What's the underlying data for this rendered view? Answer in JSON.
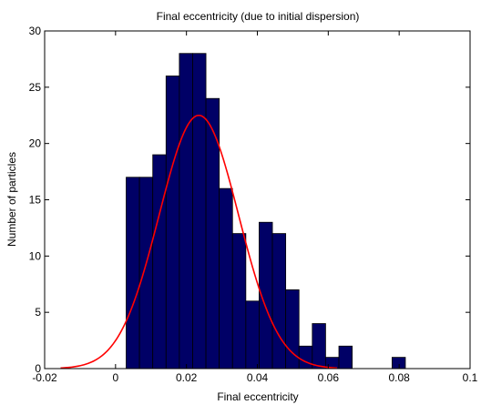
{
  "chart_data": {
    "type": "bar",
    "title": "Final eccentricity (due to initial dispersion)",
    "xlabel": "Final eccentricity",
    "ylabel": "Number of particles",
    "xlim": [
      -0.02,
      0.1
    ],
    "ylim": [
      0,
      30
    ],
    "xticks": [
      -0.02,
      0,
      0.02,
      0.04,
      0.06,
      0.08,
      0.1
    ],
    "xtick_labels": [
      "-0.02",
      "0",
      "0.02",
      "0.04",
      "0.06",
      "0.08",
      "0.1"
    ],
    "yticks": [
      0,
      5,
      10,
      15,
      20,
      25,
      30
    ],
    "ytick_labels": [
      "0",
      "5",
      "10",
      "15",
      "20",
      "25",
      "30"
    ],
    "grid": false,
    "bin_width": 0.00375,
    "bins": [
      {
        "x0": 0.003,
        "x1": 0.00675,
        "count": 17
      },
      {
        "x0": 0.00675,
        "x1": 0.0105,
        "count": 17
      },
      {
        "x0": 0.0105,
        "x1": 0.01425,
        "count": 19
      },
      {
        "x0": 0.01425,
        "x1": 0.018,
        "count": 26
      },
      {
        "x0": 0.018,
        "x1": 0.02175,
        "count": 28
      },
      {
        "x0": 0.02175,
        "x1": 0.0255,
        "count": 28
      },
      {
        "x0": 0.0255,
        "x1": 0.02925,
        "count": 24
      },
      {
        "x0": 0.02925,
        "x1": 0.033,
        "count": 16
      },
      {
        "x0": 0.033,
        "x1": 0.03675,
        "count": 12
      },
      {
        "x0": 0.03675,
        "x1": 0.0405,
        "count": 6
      },
      {
        "x0": 0.0405,
        "x1": 0.04425,
        "count": 13
      },
      {
        "x0": 0.04425,
        "x1": 0.048,
        "count": 12
      },
      {
        "x0": 0.048,
        "x1": 0.05175,
        "count": 7
      },
      {
        "x0": 0.05175,
        "x1": 0.0555,
        "count": 2
      },
      {
        "x0": 0.0555,
        "x1": 0.05925,
        "count": 4
      },
      {
        "x0": 0.05925,
        "x1": 0.063,
        "count": 1
      },
      {
        "x0": 0.063,
        "x1": 0.06675,
        "count": 2
      },
      {
        "x0": 0.06675,
        "x1": 0.0705,
        "count": 0
      },
      {
        "x0": 0.0705,
        "x1": 0.07425,
        "count": 0
      },
      {
        "x0": 0.07425,
        "x1": 0.078,
        "count": 0
      },
      {
        "x0": 0.078,
        "x1": 0.08175,
        "count": 1
      }
    ],
    "fit_curve": {
      "type": "gaussian",
      "peak": 22.5,
      "mean": 0.0235,
      "sigma": 0.0112,
      "x_range": [
        -0.0155,
        0.0625
      ]
    },
    "colors": {
      "bar_fill": "#000066",
      "bar_edge": "#000000",
      "curve": "#ff0000",
      "axes": "#000000"
    }
  }
}
